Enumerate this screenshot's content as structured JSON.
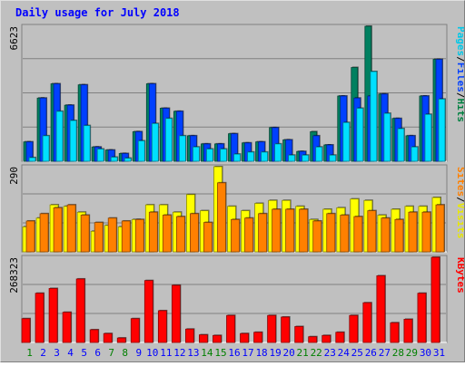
{
  "chart": {
    "title": "Daily usage for July 2018",
    "axis_max": {
      "hits": "6623",
      "visits": "290",
      "kbytes": "268323"
    },
    "legend_top": [
      {
        "text": "Pages",
        "color": "#00c8e8"
      },
      {
        "text": "/",
        "color": "#000000"
      },
      {
        "text": "Files",
        "color": "#0040ff"
      },
      {
        "text": "/",
        "color": "#000000"
      },
      {
        "text": "Hits",
        "color": "#008040"
      }
    ],
    "legend_mid": [
      {
        "text": "Sites",
        "color": "#ff8000"
      },
      {
        "text": "/",
        "color": "#000000"
      },
      {
        "text": "Visits",
        "color": "#e8e800"
      }
    ],
    "legend_bot": [
      {
        "text": "KBytes",
        "color": "#ff0000"
      }
    ],
    "colors": {
      "hits": "#008060",
      "files": "#0040ff",
      "pages": "#00e0ff",
      "visits": "#ffff00",
      "sites": "#ff8000",
      "kbytes": "#ff0000",
      "weekday": "#0000ff",
      "weekend": "#008000"
    }
  },
  "chart_data": {
    "type": "bar",
    "title": "Daily usage for July 2018",
    "x": [
      "1",
      "2",
      "3",
      "4",
      "5",
      "6",
      "7",
      "8",
      "9",
      "10",
      "11",
      "12",
      "13",
      "14",
      "15",
      "16",
      "17",
      "18",
      "19",
      "20",
      "21",
      "22",
      "23",
      "24",
      "25",
      "26",
      "27",
      "28",
      "29",
      "30",
      "31"
    ],
    "weekend_days": [
      "1",
      "7",
      "8",
      "14",
      "15",
      "21",
      "22",
      "28",
      "29"
    ],
    "panels": [
      {
        "name": "hits_files_pages",
        "ylim": [
          0,
          6623
        ],
        "series": [
          {
            "name": "Hits",
            "values": [
              950,
              3100,
              3800,
              2750,
              3750,
              700,
              550,
              380,
              1450,
              3800,
              2600,
              2450,
              1250,
              850,
              850,
              1350,
              900,
              950,
              1650,
              1050,
              480,
              1450,
              800,
              3200,
              4600,
              6623,
              3300,
              2100,
              1250,
              3200,
              5000
            ]
          },
          {
            "name": "Files",
            "values": [
              950,
              3100,
              3800,
              2750,
              3750,
              700,
              550,
              380,
              1450,
              3800,
              2600,
              2450,
              1250,
              850,
              850,
              1350,
              900,
              950,
              1650,
              1050,
              480,
              1250,
              800,
              3200,
              3100,
              3200,
              3300,
              2100,
              1250,
              3200,
              5000
            ]
          },
          {
            "name": "Pages",
            "values": [
              180,
              1250,
              2450,
              2000,
              1750,
              600,
              200,
              150,
              1000,
              1850,
              2100,
              1250,
              700,
              600,
              600,
              350,
              450,
              450,
              850,
              300,
              300,
              700,
              300,
              1900,
              2600,
              4400,
              2350,
              1600,
              700,
              2300,
              3050
            ]
          }
        ]
      },
      {
        "name": "visits_sites",
        "ylim": [
          0,
          290
        ],
        "series": [
          {
            "name": "Visits",
            "values": [
              85,
              115,
              160,
              155,
              135,
              70,
              90,
              85,
              110,
              160,
              160,
              135,
              195,
              140,
              290,
              155,
              140,
              165,
              175,
              175,
              155,
              110,
              145,
              150,
              180,
              175,
              125,
              145,
              155,
              155,
              185
            ]
          },
          {
            "name": "Sites",
            "values": [
              105,
              130,
              150,
              160,
              125,
              100,
              115,
              105,
              110,
              135,
              125,
              120,
              130,
              100,
              235,
              110,
              115,
              130,
              145,
              145,
              145,
              105,
              130,
              125,
              120,
              140,
              115,
              110,
              135,
              135,
              160
            ]
          }
        ]
      },
      {
        "name": "kbytes",
        "ylim": [
          0,
          268323
        ],
        "series": [
          {
            "name": "KBytes",
            "values": [
              75000,
              155000,
              170000,
              95000,
              200000,
              40000,
              28000,
              14000,
              75000,
              195000,
              100000,
              180000,
              42000,
              24000,
              22000,
              85000,
              28000,
              32000,
              85000,
              80000,
              50000,
              18000,
              22000,
              32000,
              85000,
              125000,
              210000,
              62000,
              73000,
              155000,
              268323
            ]
          }
        ]
      }
    ]
  }
}
